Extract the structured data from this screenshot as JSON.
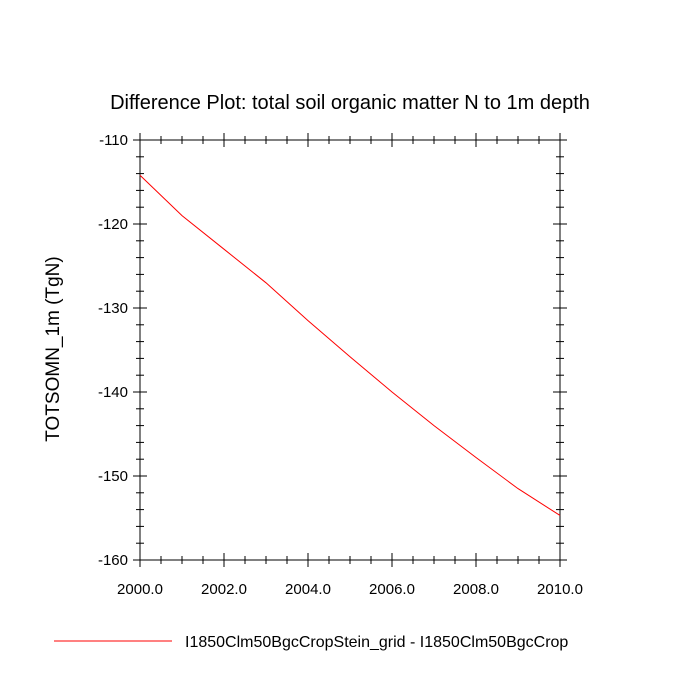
{
  "chart_data": {
    "type": "line",
    "title": "Difference Plot: total soil organic matter N to 1m depth",
    "xlabel": "",
    "ylabel": "TOTSOMN_1m  (TgN)",
    "xlim": [
      2000.0,
      2010.0
    ],
    "ylim": [
      -160,
      -110
    ],
    "xticks": [
      2000.0,
      2002.0,
      2004.0,
      2006.0,
      2008.0,
      2010.0
    ],
    "xtick_labels": [
      "2000.0",
      "2002.0",
      "2004.0",
      "2006.0",
      "2008.0",
      "2010.0"
    ],
    "yticks": [
      -110,
      -120,
      -130,
      -140,
      -150,
      -160
    ],
    "ytick_labels": [
      "-110",
      "-120",
      "-130",
      "-140",
      "-150",
      "-160"
    ],
    "grid": false,
    "legend_position": "bottom",
    "series": [
      {
        "name": "I1850Clm50BgcCropStein_grid - I1850Clm50BgcCrop",
        "color": "#ff0000",
        "x": [
          2000,
          2001,
          2002,
          2003,
          2004,
          2005,
          2006,
          2007,
          2008,
          2009,
          2010
        ],
        "values": [
          -114.2,
          -119.0,
          -123.0,
          -127.0,
          -131.5,
          -135.8,
          -140.0,
          -144.0,
          -147.8,
          -151.5,
          -154.7
        ]
      }
    ]
  }
}
